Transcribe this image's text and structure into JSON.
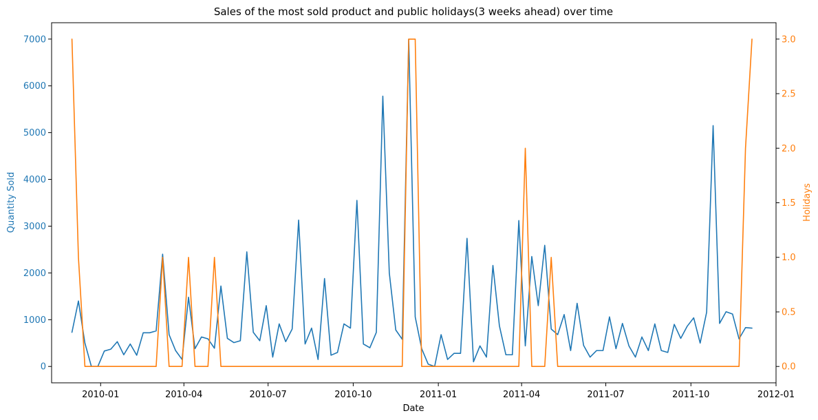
{
  "chart_data": {
    "type": "line",
    "title": "Sales of the most sold product and public holidays(3 weeks ahead) over time",
    "xlabel": "Date",
    "x_tick_labels": [
      "2010-01",
      "2010-04",
      "2010-07",
      "2010-10",
      "2011-01",
      "2011-04",
      "2011-07",
      "2011-10",
      "2012-01"
    ],
    "x_tick_dates": [
      "2010-01-01",
      "2010-04-01",
      "2010-07-01",
      "2010-10-01",
      "2011-01-01",
      "2011-04-01",
      "2011-07-01",
      "2011-10-01",
      "2012-01-01"
    ],
    "xlim": [
      "2009-11-09",
      "2012-01-01"
    ],
    "left_axis": {
      "label": "Quantity Sold",
      "ylim": [
        -350,
        7350
      ],
      "ticks": [
        0,
        1000,
        2000,
        3000,
        4000,
        5000,
        6000,
        7000
      ],
      "tick_labels": [
        "0",
        "1000",
        "2000",
        "3000",
        "4000",
        "5000",
        "6000",
        "7000"
      ],
      "color": "#1f77b4"
    },
    "right_axis": {
      "label": "Holidays",
      "ylim": [
        -0.15,
        3.15
      ],
      "ticks": [
        0,
        0.5,
        1,
        1.5,
        2,
        2.5,
        3
      ],
      "tick_labels": [
        "0.0",
        "0.5",
        "1.0",
        "1.5",
        "2.0",
        "2.5",
        "3.0"
      ],
      "color": "#ff7f0e"
    },
    "series": [
      {
        "axis": "left",
        "color": "#1f77b4",
        "x": [
          "2009-12-01",
          "2009-12-08",
          "2009-12-15",
          "2009-12-22",
          "2009-12-29",
          "2010-01-05",
          "2010-01-12",
          "2010-01-19",
          "2010-01-26",
          "2010-02-02",
          "2010-02-09",
          "2010-02-16",
          "2010-02-23",
          "2010-03-02",
          "2010-03-09",
          "2010-03-16",
          "2010-03-23",
          "2010-03-30",
          "2010-04-06",
          "2010-04-13",
          "2010-04-20",
          "2010-04-27",
          "2010-05-04",
          "2010-05-11",
          "2010-05-18",
          "2010-05-25",
          "2010-06-01",
          "2010-06-08",
          "2010-06-15",
          "2010-06-22",
          "2010-06-29",
          "2010-07-06",
          "2010-07-13",
          "2010-07-20",
          "2010-07-27",
          "2010-08-03",
          "2010-08-10",
          "2010-08-17",
          "2010-08-24",
          "2010-08-31",
          "2010-09-07",
          "2010-09-14",
          "2010-09-21",
          "2010-09-28",
          "2010-10-05",
          "2010-10-12",
          "2010-10-19",
          "2010-10-26",
          "2010-11-02",
          "2010-11-09",
          "2010-11-16",
          "2010-11-23",
          "2010-11-30",
          "2010-12-07",
          "2010-12-14",
          "2010-12-21",
          "2010-12-28",
          "2011-01-04",
          "2011-01-11",
          "2011-01-18",
          "2011-01-25",
          "2011-02-01",
          "2011-02-08",
          "2011-02-15",
          "2011-02-22",
          "2011-03-01",
          "2011-03-08",
          "2011-03-15",
          "2011-03-22",
          "2011-03-29",
          "2011-04-05",
          "2011-04-12",
          "2011-04-19",
          "2011-04-26",
          "2011-05-03",
          "2011-05-10",
          "2011-05-17",
          "2011-05-24",
          "2011-05-31",
          "2011-06-07",
          "2011-06-14",
          "2011-06-21",
          "2011-06-28",
          "2011-07-05",
          "2011-07-12",
          "2011-07-19",
          "2011-07-26",
          "2011-08-02",
          "2011-08-09",
          "2011-08-16",
          "2011-08-23",
          "2011-08-30",
          "2011-09-06",
          "2011-09-13",
          "2011-09-20",
          "2011-09-27",
          "2011-10-04",
          "2011-10-11",
          "2011-10-18",
          "2011-10-25",
          "2011-11-01",
          "2011-11-08",
          "2011-11-15",
          "2011-11-22",
          "2011-11-29",
          "2011-12-06"
        ],
        "y": [
          730,
          1400,
          500,
          0,
          0,
          330,
          370,
          530,
          250,
          480,
          240,
          720,
          720,
          760,
          2400,
          680,
          340,
          150,
          1480,
          380,
          630,
          590,
          390,
          1720,
          600,
          510,
          550,
          2450,
          730,
          550,
          1300,
          200,
          910,
          530,
          800,
          3130,
          480,
          820,
          150,
          1880,
          240,
          300,
          910,
          820,
          3550,
          480,
          400,
          730,
          5780,
          2000,
          780,
          580,
          7000,
          1060,
          380,
          50,
          0,
          680,
          150,
          280,
          280,
          2740,
          100,
          440,
          200,
          2160,
          870,
          250,
          250,
          3120,
          440,
          2350,
          1300,
          2590,
          800,
          680,
          1110,
          340,
          1350,
          450,
          200,
          340,
          340,
          1060,
          380,
          920,
          440,
          200,
          630,
          340,
          910,
          340,
          300,
          900,
          600,
          860,
          1040,
          500,
          1160,
          5150,
          920,
          1170,
          1120,
          590,
          830,
          820
        ]
      },
      {
        "axis": "right",
        "color": "#ff7f0e",
        "x": [
          "2009-12-01",
          "2009-12-08",
          "2009-12-15",
          "2009-12-22",
          "2009-12-29",
          "2010-01-05",
          "2010-01-12",
          "2010-01-19",
          "2010-01-26",
          "2010-02-02",
          "2010-02-09",
          "2010-02-16",
          "2010-02-23",
          "2010-03-02",
          "2010-03-09",
          "2010-03-16",
          "2010-03-23",
          "2010-03-30",
          "2010-04-06",
          "2010-04-13",
          "2010-04-20",
          "2010-04-27",
          "2010-05-04",
          "2010-05-11",
          "2010-05-18",
          "2010-05-25",
          "2010-06-01",
          "2010-06-08",
          "2010-06-15",
          "2010-06-22",
          "2010-06-29",
          "2010-07-06",
          "2010-07-13",
          "2010-07-20",
          "2010-07-27",
          "2010-08-03",
          "2010-08-10",
          "2010-08-17",
          "2010-08-24",
          "2010-08-31",
          "2010-09-07",
          "2010-09-14",
          "2010-09-21",
          "2010-09-28",
          "2010-10-05",
          "2010-10-12",
          "2010-10-19",
          "2010-10-26",
          "2010-11-02",
          "2010-11-09",
          "2010-11-16",
          "2010-11-23",
          "2010-11-30",
          "2010-12-07",
          "2010-12-14",
          "2010-12-21",
          "2010-12-28",
          "2011-01-04",
          "2011-01-11",
          "2011-01-18",
          "2011-01-25",
          "2011-02-01",
          "2011-02-08",
          "2011-02-15",
          "2011-02-22",
          "2011-03-01",
          "2011-03-08",
          "2011-03-15",
          "2011-03-22",
          "2011-03-29",
          "2011-04-05",
          "2011-04-12",
          "2011-04-19",
          "2011-04-26",
          "2011-05-03",
          "2011-05-10",
          "2011-05-17",
          "2011-05-24",
          "2011-05-31",
          "2011-06-07",
          "2011-06-14",
          "2011-06-21",
          "2011-06-28",
          "2011-07-05",
          "2011-07-12",
          "2011-07-19",
          "2011-07-26",
          "2011-08-02",
          "2011-08-09",
          "2011-08-16",
          "2011-08-23",
          "2011-08-30",
          "2011-09-06",
          "2011-09-13",
          "2011-09-20",
          "2011-09-27",
          "2011-10-04",
          "2011-10-11",
          "2011-10-18",
          "2011-10-25",
          "2011-11-01",
          "2011-11-08",
          "2011-11-15",
          "2011-11-22",
          "2011-11-29",
          "2011-12-06"
        ],
        "y": [
          3,
          1,
          0,
          0,
          0,
          0,
          0,
          0,
          0,
          0,
          0,
          0,
          0,
          0,
          1,
          0,
          0,
          0,
          1,
          0,
          0,
          0,
          1,
          0,
          0,
          0,
          0,
          0,
          0,
          0,
          0,
          0,
          0,
          0,
          0,
          0,
          0,
          0,
          0,
          0,
          0,
          0,
          0,
          0,
          0,
          0,
          0,
          0,
          0,
          0,
          0,
          0,
          3,
          3,
          0,
          0,
          0,
          0,
          0,
          0,
          0,
          0,
          0,
          0,
          0,
          0,
          0,
          0,
          0,
          0,
          2,
          0,
          0,
          0,
          1,
          0,
          0,
          0,
          0,
          0,
          0,
          0,
          0,
          0,
          0,
          0,
          0,
          0,
          0,
          0,
          0,
          0,
          0,
          0,
          0,
          0,
          0,
          0,
          0,
          0,
          0,
          0,
          0,
          0,
          2,
          3
        ]
      }
    ]
  }
}
